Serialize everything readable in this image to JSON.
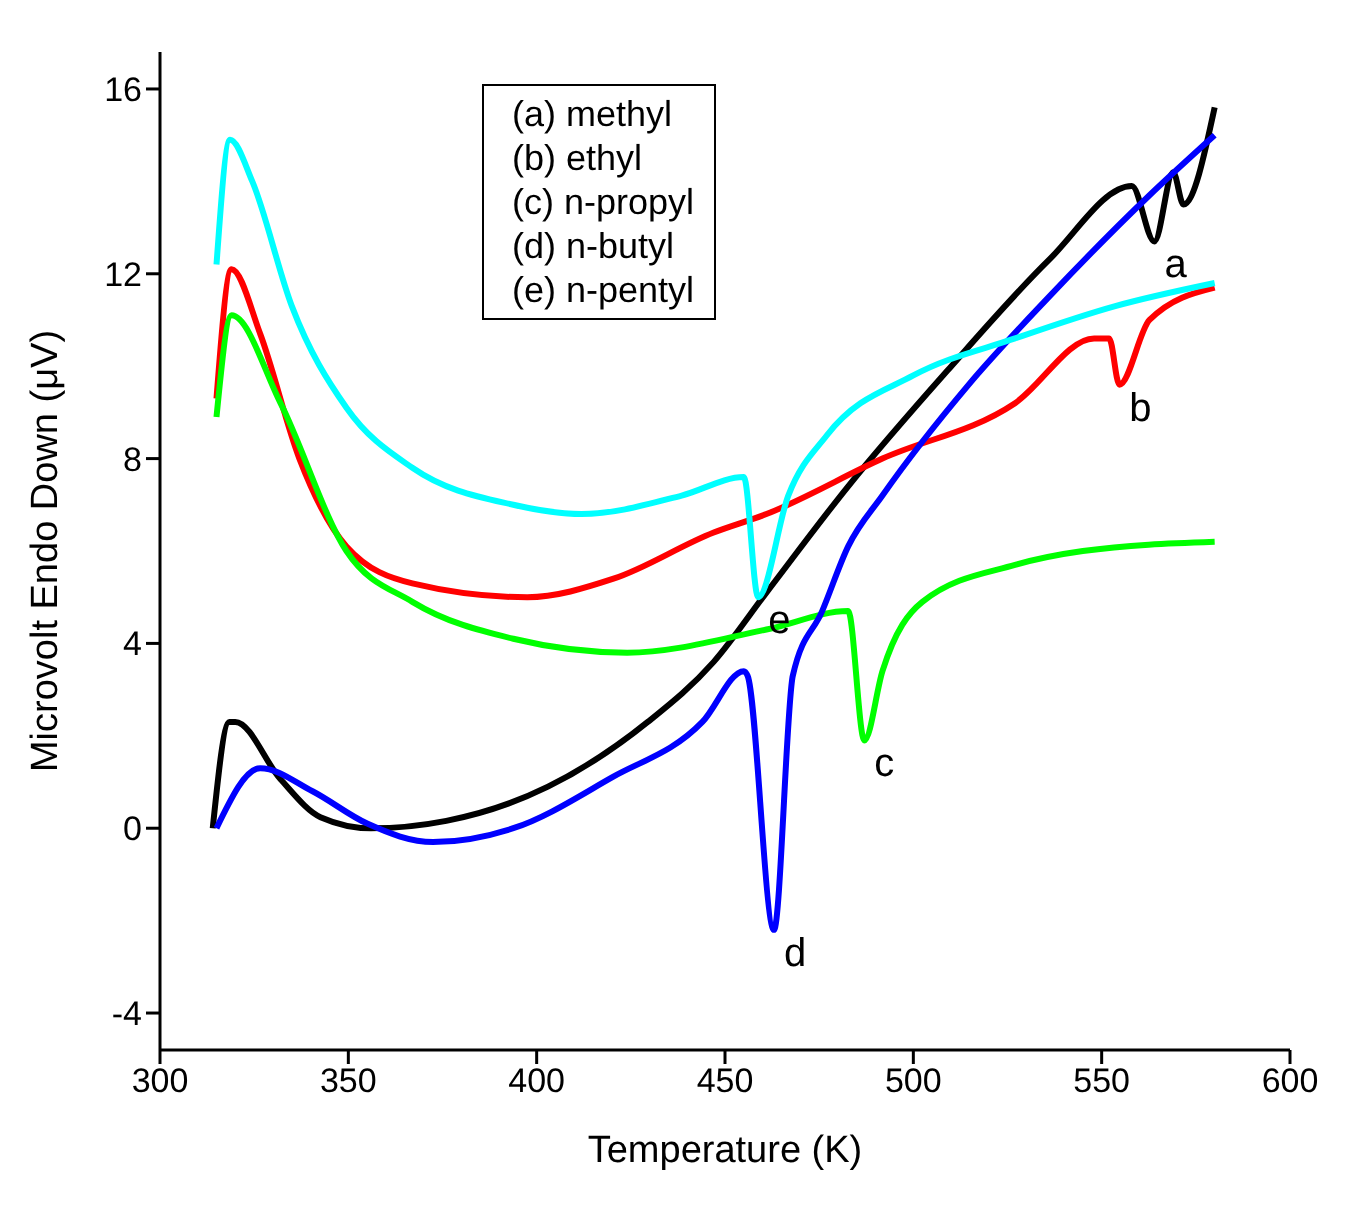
{
  "chart_data": {
    "type": "line",
    "xlabel": "Temperature (K)",
    "ylabel": "Microvolt Endo Down (μV)",
    "xlim": [
      300,
      600
    ],
    "xticks": [
      300,
      350,
      400,
      450,
      500,
      550,
      600
    ],
    "ylim": [
      -4.8,
      16.8
    ],
    "yticks": [
      -4,
      0,
      4,
      8,
      12,
      16
    ],
    "grid": false,
    "legend": false,
    "marker": "none",
    "line_style": "solid",
    "annotations": [
      "(a) methyl",
      "(b) ethyl",
      "(c) n-propyl",
      "(d) n-butyl",
      "(e) n-pentyl",
      {
        "text": "a",
        "x": 564,
        "y": 12.7
      },
      {
        "text": "b",
        "x": 554.7,
        "y": 9.6
      },
      {
        "text": "c",
        "x": 487,
        "y": 1.9
      },
      {
        "text": "d",
        "x": 463,
        "y": -2.2
      },
      {
        "text": "e",
        "x": 458.8,
        "y": 5.0
      }
    ],
    "series": [
      {
        "color": "#000000",
        "x": [
          314,
          318.4,
          320,
          332,
          342.6,
          356,
          376,
          403,
          429.5,
          447,
          461,
          482.7,
          509,
          536,
          558,
          564,
          569,
          571.7,
          580
        ],
        "values": [
          0,
          2.3,
          2.3,
          1.06,
          0.24,
          0,
          0.16,
          0.9,
          2.3,
          3.6,
          5.1,
          7.4,
          9.9,
          12.3,
          13.9,
          12.7,
          14.2,
          13.5,
          15.6
        ]
      },
      {
        "color": "#ff0000",
        "x": [
          315,
          319,
          326.6,
          337,
          349.5,
          367,
          397.5,
          420.4,
          447,
          461,
          491.8,
          527,
          548,
          552,
          554.7,
          562.7,
          580
        ],
        "values": [
          9.3,
          12.1,
          10.7,
          8.0,
          6.1,
          5.3,
          5.0,
          5.4,
          6.4,
          6.8,
          8.0,
          9.2,
          10.6,
          10.6,
          9.6,
          11.0,
          11.7
        ]
      },
      {
        "color": "#00ff00",
        "x": [
          315,
          319,
          332,
          349.5,
          367,
          393.8,
          424,
          461,
          482.7,
          487,
          491.8,
          502.4,
          527,
          545,
          580
        ],
        "values": [
          8.9,
          11.1,
          9.2,
          6.0,
          4.9,
          4.1,
          3.8,
          4.3,
          4.7,
          1.9,
          3.4,
          4.9,
          5.7,
          6.0,
          6.2
        ]
      },
      {
        "color": "#0000ff",
        "x": [
          315,
          326.6,
          340.5,
          355,
          372.5,
          393.8,
          420,
          444,
          455,
          456,
          463,
          468,
          475.8,
          482.7,
          491.8,
          514.7,
          536,
          562.7,
          580
        ],
        "values": [
          0,
          1.3,
          0.8,
          0.1,
          -0.3,
          0,
          1.1,
          2.3,
          3.4,
          3.3,
          -2.2,
          3.3,
          4.7,
          6.1,
          7.2,
          9.6,
          11.5,
          13.7,
          15.0
        ]
      },
      {
        "color": "#00ffff",
        "x": [
          315,
          318.6,
          324.5,
          335,
          349.5,
          367,
          393.8,
          411.9,
          438.5,
          455,
          458.8,
          466.8,
          477,
          500,
          527,
          553.6,
          580
        ],
        "values": [
          12.2,
          14.9,
          14.0,
          11.3,
          9.1,
          7.8,
          7.0,
          6.8,
          7.2,
          7.6,
          5.0,
          7.2,
          8.5,
          9.8,
          10.6,
          11.3,
          11.8
        ]
      }
    ]
  }
}
